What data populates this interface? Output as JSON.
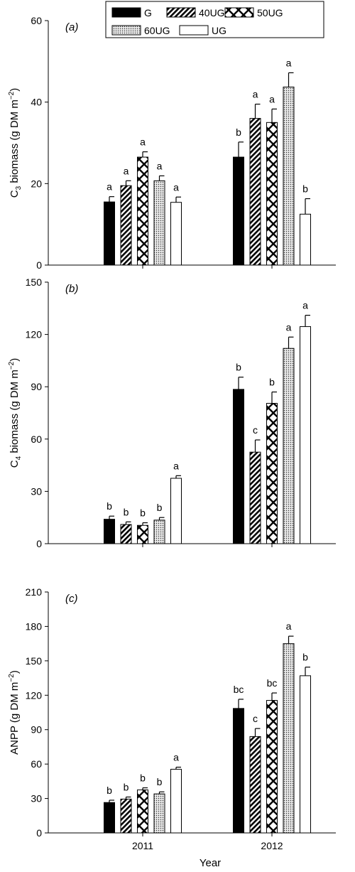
{
  "legend": {
    "items": [
      {
        "name": "G",
        "pattern": "solid"
      },
      {
        "name": "40UG",
        "pattern": "diagonal-hatch"
      },
      {
        "name": "50UG",
        "pattern": "cross-hatch"
      },
      {
        "name": "60UG",
        "pattern": "dots"
      },
      {
        "name": "UG",
        "pattern": "open"
      }
    ]
  },
  "xlabel": "Year",
  "chart_data": [
    {
      "type": "bar",
      "panel": "(a)",
      "ylabel_main": "C",
      "ylabel_sub": "3",
      "ylabel_rest": " biomass (g DM m",
      "ylabel_sup": "−2",
      "ylabel_end": ")",
      "ylim": [
        0,
        60
      ],
      "yticks": [
        0,
        20,
        40,
        60
      ],
      "categories": [
        "2011",
        "2012"
      ],
      "series": [
        {
          "name": "G",
          "values": [
            15.5,
            26.5
          ],
          "errors": [
            1.3,
            3.7
          ],
          "letters": [
            "a",
            "b"
          ]
        },
        {
          "name": "40UG",
          "values": [
            19.5,
            36
          ],
          "errors": [
            1.2,
            3.5
          ],
          "letters": [
            "a",
            "a"
          ]
        },
        {
          "name": "50UG",
          "values": [
            26.5,
            35
          ],
          "errors": [
            1.3,
            3.3
          ],
          "letters": [
            "a",
            "a"
          ]
        },
        {
          "name": "60UG",
          "values": [
            20.7,
            43.7
          ],
          "errors": [
            1.2,
            3.5
          ],
          "letters": [
            "a",
            "a"
          ]
        },
        {
          "name": "UG",
          "values": [
            15.4,
            12.5
          ],
          "errors": [
            1.3,
            3.8
          ],
          "letters": [
            "a",
            "b"
          ]
        }
      ]
    },
    {
      "type": "bar",
      "panel": "(b)",
      "ylabel_main": "C",
      "ylabel_sub": "4",
      "ylabel_rest": " biomass (g DM m",
      "ylabel_sup": "−2",
      "ylabel_end": ")",
      "ylim": [
        0,
        150
      ],
      "yticks": [
        0,
        30,
        60,
        90,
        120,
        150
      ],
      "categories": [
        "2011",
        "2012"
      ],
      "series": [
        {
          "name": "G",
          "values": [
            14,
            88.5
          ],
          "errors": [
            1.8,
            7
          ],
          "letters": [
            "b",
            "b"
          ]
        },
        {
          "name": "40UG",
          "values": [
            11,
            52.5
          ],
          "errors": [
            1.5,
            7
          ],
          "letters": [
            "b",
            "c"
          ]
        },
        {
          "name": "50UG",
          "values": [
            10.5,
            80.5
          ],
          "errors": [
            1.5,
            6.5
          ],
          "letters": [
            "b",
            "b"
          ]
        },
        {
          "name": "60UG",
          "values": [
            13.5,
            112
          ],
          "errors": [
            1.5,
            6.5
          ],
          "letters": [
            "b",
            "a"
          ]
        },
        {
          "name": "UG",
          "values": [
            37.5,
            124.5
          ],
          "errors": [
            1.5,
            6.5
          ],
          "letters": [
            "a",
            "a"
          ]
        }
      ]
    },
    {
      "type": "bar",
      "panel": "(c)",
      "ylabel_main": "ANPP (g DM m",
      "ylabel_sub": "",
      "ylabel_rest": "",
      "ylabel_sup": "−2",
      "ylabel_end": ")",
      "ylim": [
        0,
        210
      ],
      "yticks": [
        0,
        30,
        60,
        90,
        120,
        150,
        180,
        210
      ],
      "categories": [
        "2011",
        "2012"
      ],
      "series": [
        {
          "name": "G",
          "values": [
            26.5,
            108.5
          ],
          "errors": [
            2,
            8
          ],
          "letters": [
            "b",
            "bc"
          ]
        },
        {
          "name": "40UG",
          "values": [
            29.5,
            84
          ],
          "errors": [
            1.8,
            7
          ],
          "letters": [
            "b",
            "c"
          ]
        },
        {
          "name": "50UG",
          "values": [
            37.5,
            115.5
          ],
          "errors": [
            1.8,
            6.5
          ],
          "letters": [
            "b",
            "bc"
          ]
        },
        {
          "name": "60UG",
          "values": [
            34,
            165
          ],
          "errors": [
            1.8,
            6.5
          ],
          "letters": [
            "b",
            "a"
          ]
        },
        {
          "name": "UG",
          "values": [
            55.5,
            137
          ],
          "errors": [
            1.8,
            7.5
          ],
          "letters": [
            "a",
            "b"
          ]
        }
      ]
    }
  ]
}
